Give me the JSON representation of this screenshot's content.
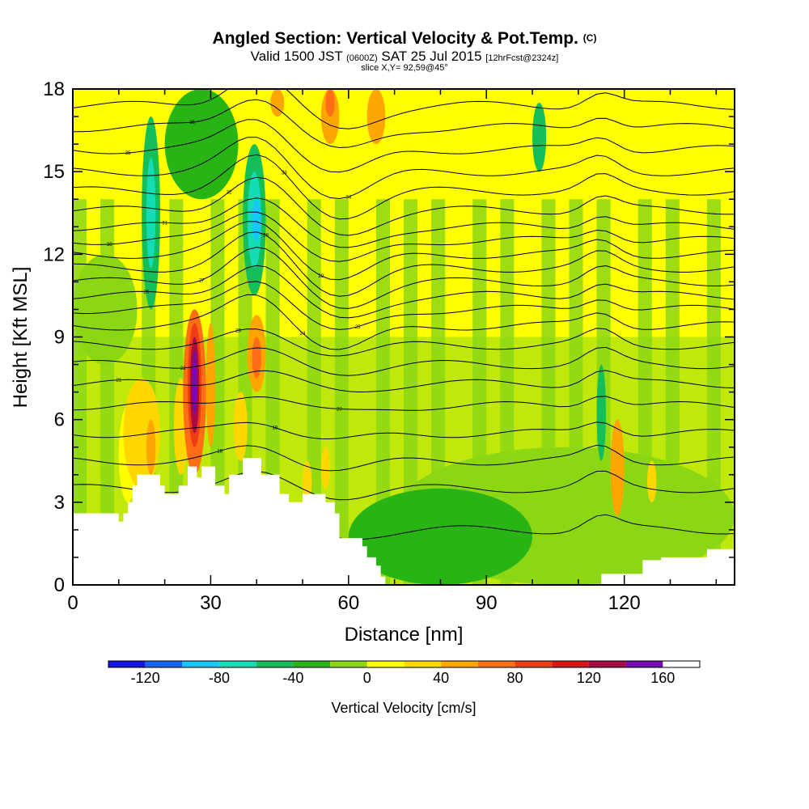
{
  "title": {
    "main": "Angled Section: Vertical Velocity & Pot.Temp.",
    "main_suffix": "(C)",
    "valid_prefix": "Valid 1500 JST",
    "valid_utc": "(0600Z)",
    "valid_date": "SAT 25 Jul 2015",
    "forecast": "[12hrFcst@2324z]",
    "slice": "slice X,Y= 92,59@45°"
  },
  "colors": {
    "bands": [
      "#1414e6",
      "#1464fa",
      "#14c8fa",
      "#14dcb4",
      "#14be5a",
      "#28b414",
      "#8cd714",
      "#ffff00",
      "#ffd700",
      "#ffa500",
      "#ff6e14",
      "#f03c14",
      "#dc1414",
      "#aa0a46",
      "#780ab4"
    ],
    "terrain": "#ffffff"
  },
  "chart_data": {
    "type": "heatmap",
    "xlabel": "Distance [nm]",
    "ylabel": "Height [Kft MSL]",
    "xlim": [
      0,
      144
    ],
    "ylim": [
      0,
      18
    ],
    "x_ticks": [
      0,
      30,
      60,
      90,
      120
    ],
    "y_ticks": [
      0,
      3,
      6,
      9,
      12,
      15,
      18
    ],
    "colorbar": {
      "label": "Vertical Velocity [cm/s]",
      "range": [
        -140,
        180
      ],
      "step": 20,
      "tick_values": [
        -120,
        -80,
        -40,
        0,
        40,
        80,
        120,
        160
      ]
    },
    "terrain_kft": [
      [
        0,
        2.6
      ],
      [
        10,
        2.6
      ],
      [
        10,
        2.3
      ],
      [
        11,
        2.3
      ],
      [
        11,
        2.6
      ],
      [
        12,
        2.6
      ],
      [
        12,
        3.0
      ],
      [
        13,
        3.0
      ],
      [
        13,
        3.6
      ],
      [
        14,
        3.6
      ],
      [
        14,
        4.0
      ],
      [
        19,
        4.0
      ],
      [
        19,
        3.6
      ],
      [
        20,
        3.6
      ],
      [
        20,
        3.3
      ],
      [
        23,
        3.3
      ],
      [
        23,
        3.6
      ],
      [
        25,
        3.6
      ],
      [
        25,
        4.3
      ],
      [
        27,
        4.3
      ],
      [
        27,
        3.9
      ],
      [
        28,
        3.9
      ],
      [
        28,
        4.3
      ],
      [
        31,
        4.3
      ],
      [
        31,
        3.6
      ],
      [
        33,
        3.6
      ],
      [
        33,
        3.3
      ],
      [
        34,
        3.3
      ],
      [
        34,
        4.0
      ],
      [
        37,
        4.0
      ],
      [
        37,
        4.6
      ],
      [
        41,
        4.6
      ],
      [
        41,
        4.0
      ],
      [
        45,
        4.0
      ],
      [
        45,
        3.3
      ],
      [
        47,
        3.3
      ],
      [
        47,
        3.0
      ],
      [
        50,
        3.0
      ],
      [
        50,
        3.3
      ],
      [
        55,
        3.3
      ],
      [
        55,
        3.0
      ],
      [
        57,
        3.0
      ],
      [
        57,
        2.6
      ],
      [
        58,
        2.6
      ],
      [
        58,
        1.7
      ],
      [
        63,
        1.7
      ],
      [
        63,
        1.4
      ],
      [
        64,
        1.4
      ],
      [
        64,
        1.0
      ],
      [
        66,
        1.0
      ],
      [
        66,
        0.7
      ],
      [
        67,
        0.7
      ],
      [
        67,
        0.3
      ],
      [
        68,
        0.3
      ],
      [
        68,
        0
      ],
      [
        115,
        0
      ],
      [
        115,
        0.4
      ],
      [
        124,
        0.4
      ],
      [
        124,
        0.9
      ],
      [
        128,
        0.9
      ],
      [
        128,
        1.0
      ],
      [
        138,
        1.0
      ],
      [
        138,
        1.3
      ],
      [
        144,
        1.3
      ]
    ],
    "vertical_velocity_cells": [
      {
        "x": [
          10,
          14
        ],
        "y": [
          3.0,
          6.5
        ],
        "w": 10
      },
      {
        "x": [
          11,
          19
        ],
        "y": [
          3.5,
          7.5
        ],
        "w": 30
      },
      {
        "x": [
          16,
          18
        ],
        "y": [
          4.0,
          6.0
        ],
        "w": 40
      },
      {
        "x": [
          22,
          25
        ],
        "y": [
          4.0,
          7.5
        ],
        "w": 30
      },
      {
        "x": [
          24,
          29
        ],
        "y": [
          4.0,
          10.0
        ],
        "w": 60
      },
      {
        "x": [
          25,
          28
        ],
        "y": [
          5.0,
          9.5
        ],
        "w": 90
      },
      {
        "x": [
          25.5,
          27.5
        ],
        "y": [
          5.5,
          9.0
        ],
        "w": 120
      },
      {
        "x": [
          26,
          27
        ],
        "y": [
          6.2,
          8.5
        ],
        "w": 150
      },
      {
        "x": [
          29,
          31
        ],
        "y": [
          5.0,
          9.5
        ],
        "w": 40
      },
      {
        "x": [
          38,
          42
        ],
        "y": [
          7.0,
          9.8
        ],
        "w": 50
      },
      {
        "x": [
          39,
          41
        ],
        "y": [
          7.5,
          9.0
        ],
        "w": 70
      },
      {
        "x": [
          35,
          38
        ],
        "y": [
          4.5,
          7.0
        ],
        "w": 30
      },
      {
        "x": [
          50,
          52
        ],
        "y": [
          3.0,
          4.5
        ],
        "w": 30
      },
      {
        "x": [
          54,
          56
        ],
        "y": [
          3.5,
          5.0
        ],
        "w": 30
      },
      {
        "x": [
          54,
          58
        ],
        "y": [
          16.0,
          18.0
        ],
        "w": 50
      },
      {
        "x": [
          55,
          57
        ],
        "y": [
          17.0,
          18.0
        ],
        "w": 60
      },
      {
        "x": [
          64,
          68
        ],
        "y": [
          16.0,
          18.0
        ],
        "w": 40
      },
      {
        "x": [
          43,
          46
        ],
        "y": [
          17.0,
          18.0
        ],
        "w": 40
      },
      {
        "x": [
          117,
          120
        ],
        "y": [
          2.5,
          6.0
        ],
        "w": 40
      },
      {
        "x": [
          125,
          127
        ],
        "y": [
          3.0,
          4.5
        ],
        "w": 30
      },
      {
        "x": [
          15,
          19
        ],
        "y": [
          10.0,
          17.0
        ],
        "w": -60
      },
      {
        "x": [
          16,
          18
        ],
        "y": [
          11.5,
          15.5
        ],
        "w": -80
      },
      {
        "x": [
          37,
          42
        ],
        "y": [
          10.5,
          16.0
        ],
        "w": -60
      },
      {
        "x": [
          38,
          41
        ],
        "y": [
          11.5,
          15.0
        ],
        "w": -80
      },
      {
        "x": [
          39,
          41
        ],
        "y": [
          12.5,
          14.0
        ],
        "w": -100
      },
      {
        "x": [
          114,
          116
        ],
        "y": [
          4.5,
          8.0
        ],
        "w": -60
      },
      {
        "x": [
          100,
          103
        ],
        "y": [
          15.0,
          17.5
        ],
        "w": -50
      },
      {
        "x": [
          20,
          36
        ],
        "y": [
          14.0,
          18.0
        ],
        "w": -30
      },
      {
        "x": [
          0,
          14
        ],
        "y": [
          8.0,
          12.0
        ],
        "w": -20
      },
      {
        "x": [
          70,
          144
        ],
        "y": [
          0.0,
          5.0
        ],
        "w": -20
      },
      {
        "x": [
          60,
          100
        ],
        "y": [
          0.0,
          3.5
        ],
        "w": -30
      }
    ],
    "potential_temperature_levels": [
      {
        "base": 2.0,
        "label": "16"
      },
      {
        "base": 3.5,
        "label": "17"
      },
      {
        "base": 4.5,
        "label": "18"
      },
      {
        "base": 5.5,
        "label": "19"
      },
      {
        "base": 6.5,
        "label": "20"
      },
      {
        "base": 7.3,
        "label": "21"
      },
      {
        "base": 8.0,
        "label": "22"
      },
      {
        "base": 8.7,
        "label": "23"
      },
      {
        "base": 9.4,
        "label": "24"
      },
      {
        "base": 10.0,
        "label": "25"
      },
      {
        "base": 10.5,
        "label": "26"
      },
      {
        "base": 11.0,
        "label": "27"
      },
      {
        "base": 11.5,
        "label": "28"
      },
      {
        "base": 12.0,
        "label": "29"
      },
      {
        "base": 12.5,
        "label": "30"
      },
      {
        "base": 13.0,
        "label": "31"
      },
      {
        "base": 13.6,
        "label": "32"
      },
      {
        "base": 14.3,
        "label": "33"
      },
      {
        "base": 15.0,
        "label": "34"
      },
      {
        "base": 15.8,
        "label": "35"
      },
      {
        "base": 16.6,
        "label": "36"
      },
      {
        "base": 17.4,
        "label": "37"
      }
    ]
  }
}
